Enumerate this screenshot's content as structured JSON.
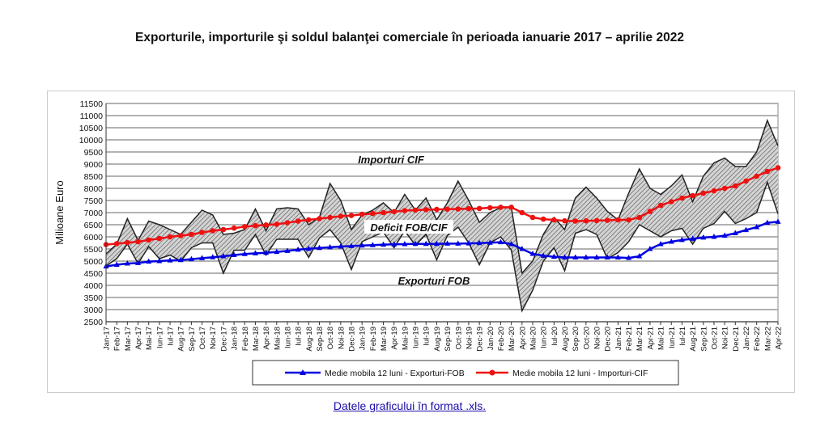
{
  "title": "Exporturile, importurile şi soldul balanţei comerciale în perioada ianuarie 2017 – aprilie 2022",
  "link": "Datele graficului în format .xls.",
  "chart_data": {
    "type": "line",
    "ylabel": "Milioane Euro",
    "ylim": [
      2500,
      11500
    ],
    "yticks": [
      2500,
      3000,
      3500,
      4000,
      4500,
      5000,
      5500,
      6000,
      6500,
      7000,
      7500,
      8000,
      8500,
      9000,
      9500,
      10000,
      10500,
      11000,
      11500
    ],
    "grid": true,
    "x": [
      "Jan-17",
      "Feb-17",
      "Mar-17",
      "Apr-17",
      "Mai-17",
      "Iun-17",
      "Iul-17",
      "Aug-17",
      "Sep-17",
      "Oct-17",
      "Noi-17",
      "Dec-17",
      "Jan-18",
      "Feb-18",
      "Mar-18",
      "Apr-18",
      "Mai-18",
      "Iun-18",
      "Iul-18",
      "Aug-18",
      "Sep-18",
      "Oct-18",
      "Noi-18",
      "Dec-18",
      "Jan-19",
      "Feb-19",
      "Mar-19",
      "Apr-19",
      "Mai-19",
      "Iun-19",
      "Iul-19",
      "Aug-19",
      "Sep-19",
      "Oct-19",
      "Noi-19",
      "Dec-19",
      "Jan-20",
      "Feb-20",
      "Mar-20",
      "Apr-20",
      "Mai-20",
      "Iun-20",
      "Iul-20",
      "Aug-20",
      "Sep-20",
      "Oct-20",
      "Noi-20",
      "Dec-20",
      "Jan-21",
      "Feb-21",
      "Mar-21",
      "Apr-21",
      "Mai-21",
      "Iun-21",
      "Iul-21",
      "Aug-21",
      "Sep-21",
      "Oct-21",
      "Noi-21",
      "Dec-21",
      "Jan-22",
      "Feb-22",
      "Mar-22",
      "Apr-22"
    ],
    "series": [
      {
        "name": "Importuri CIF",
        "color": "#222222",
        "values": [
          5300,
          5700,
          6750,
          5850,
          6650,
          6500,
          6300,
          6100,
          6600,
          7100,
          6900,
          6100,
          6150,
          6300,
          7150,
          6250,
          7150,
          7200,
          7150,
          6500,
          6800,
          8200,
          7500,
          6300,
          6900,
          7100,
          7400,
          7000,
          7750,
          7100,
          7600,
          6700,
          7400,
          8300,
          7500,
          6600,
          7000,
          7200,
          7200,
          4500,
          5000,
          6100,
          6800,
          6300,
          7600,
          8050,
          7600,
          7050,
          6700,
          7800,
          8800,
          8000,
          7750,
          8100,
          8550,
          7450,
          8500,
          9050,
          9250,
          8900,
          8900,
          9500,
          10800,
          9750
        ]
      },
      {
        "name": "Exporturi FOB",
        "color": "#222222",
        "values": [
          4800,
          5100,
          5700,
          4900,
          5600,
          5100,
          5250,
          5000,
          5550,
          5750,
          5750,
          4500,
          5450,
          5450,
          6100,
          5250,
          5900,
          5900,
          5900,
          5150,
          5950,
          6300,
          5750,
          4650,
          5800,
          6000,
          6200,
          5550,
          6250,
          5650,
          6100,
          5050,
          6050,
          6400,
          5750,
          4850,
          5750,
          6000,
          5450,
          2950,
          3800,
          5000,
          5550,
          4600,
          6150,
          6300,
          6100,
          5100,
          5350,
          5800,
          6500,
          6250,
          6000,
          6250,
          6350,
          5700,
          6350,
          6550,
          7050,
          6550,
          6750,
          7000,
          8250,
          6950
        ]
      },
      {
        "name": "Medie mobila 12 luni - Exporturi-FOB",
        "color": "#0000e0",
        "marker": "triangle",
        "values": [
          4780,
          4850,
          4900,
          4920,
          4980,
          5000,
          5030,
          5040,
          5080,
          5120,
          5160,
          5200,
          5250,
          5290,
          5320,
          5340,
          5380,
          5420,
          5470,
          5510,
          5540,
          5570,
          5600,
          5620,
          5640,
          5660,
          5680,
          5690,
          5700,
          5710,
          5710,
          5710,
          5720,
          5720,
          5730,
          5740,
          5760,
          5780,
          5700,
          5500,
          5300,
          5220,
          5180,
          5150,
          5150,
          5150,
          5150,
          5150,
          5150,
          5130,
          5200,
          5500,
          5700,
          5800,
          5870,
          5920,
          5970,
          6000,
          6050,
          6150,
          6280,
          6400,
          6580,
          6620
        ]
      },
      {
        "name": "Medie mobila 12 luni - Importuri-CIF",
        "color": "#ee1111",
        "marker": "circle",
        "values": [
          5680,
          5720,
          5760,
          5800,
          5870,
          5930,
          6000,
          6050,
          6100,
          6180,
          6250,
          6300,
          6360,
          6420,
          6460,
          6490,
          6520,
          6580,
          6650,
          6700,
          6750,
          6800,
          6850,
          6880,
          6930,
          6960,
          7000,
          7040,
          7080,
          7100,
          7120,
          7130,
          7140,
          7150,
          7160,
          7170,
          7200,
          7220,
          7220,
          7000,
          6800,
          6730,
          6700,
          6660,
          6650,
          6660,
          6670,
          6680,
          6700,
          6700,
          6800,
          7050,
          7300,
          7450,
          7600,
          7700,
          7800,
          7900,
          8000,
          8100,
          8300,
          8500,
          8700,
          8850
        ]
      }
    ],
    "annotations": [
      "Importuri CIF",
      "Deficit FOB/CIF",
      "Exporturi FOB"
    ],
    "legend": {
      "placement": "bottom",
      "entries": [
        "Medie mobila 12 luni - Exporturi-FOB",
        "Medie mobila 12 luni - Importuri-CIF"
      ]
    }
  }
}
